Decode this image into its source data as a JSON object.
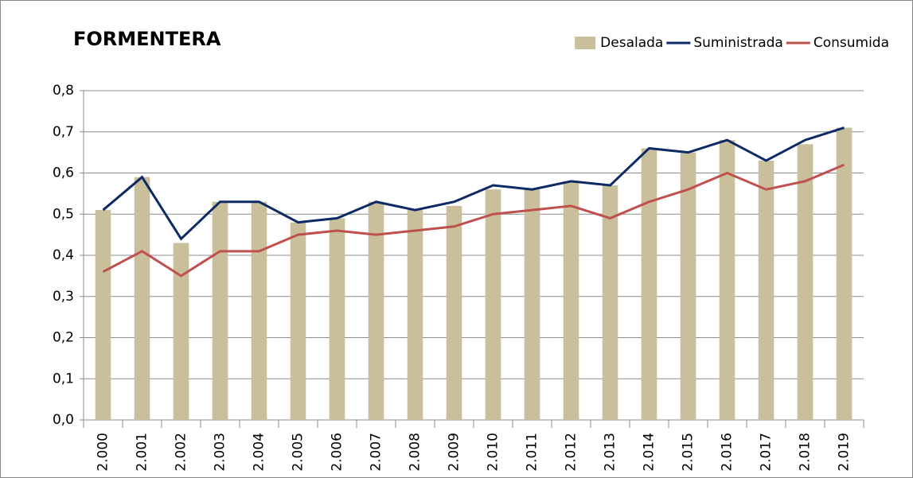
{
  "chart_data": {
    "type": "bar",
    "title": "FORMENTERA",
    "categories": [
      "2.000",
      "2.001",
      "2.002",
      "2.003",
      "2.004",
      "2.005",
      "2.006",
      "2.007",
      "2.008",
      "2.009",
      "2.010",
      "2.011",
      "2.012",
      "2.013",
      "2.014",
      "2.015",
      "2.016",
      "2.017",
      "2.018",
      "2.019"
    ],
    "series": [
      {
        "name": "Desalada",
        "type": "bar",
        "color": "#c9c09b",
        "values": [
          0.51,
          0.59,
          0.43,
          0.53,
          0.53,
          0.48,
          0.49,
          0.53,
          0.51,
          0.52,
          0.56,
          0.56,
          0.58,
          0.57,
          0.66,
          0.65,
          0.68,
          0.63,
          0.67,
          0.71
        ]
      },
      {
        "name": "Suministrada",
        "type": "line",
        "color": "#0d2a66",
        "values": [
          0.51,
          0.59,
          0.44,
          0.53,
          0.53,
          0.48,
          0.49,
          0.53,
          0.51,
          0.53,
          0.57,
          0.56,
          0.58,
          0.57,
          0.66,
          0.65,
          0.68,
          0.63,
          0.68,
          0.71
        ]
      },
      {
        "name": "Consumida",
        "type": "line",
        "color": "#c0504d",
        "values": [
          0.36,
          0.41,
          0.35,
          0.41,
          0.41,
          0.45,
          0.46,
          0.45,
          0.46,
          0.47,
          0.5,
          0.51,
          0.52,
          0.49,
          0.53,
          0.56,
          0.6,
          0.56,
          0.58,
          0.62
        ]
      }
    ],
    "ylim": [
      0,
      0.8
    ],
    "yticks": [
      {
        "value": 0,
        "label": "0,0"
      },
      {
        "value": 0.1,
        "label": "0,1"
      },
      {
        "value": 0.2,
        "label": "0,2"
      },
      {
        "value": 0.3,
        "label": "0,3"
      },
      {
        "value": 0.4,
        "label": "0,4"
      },
      {
        "value": 0.5,
        "label": "0,5"
      },
      {
        "value": 0.6,
        "label": "0,6"
      },
      {
        "value": 0.7,
        "label": "0,7"
      },
      {
        "value": 0.8,
        "label": "0,8"
      }
    ],
    "grid": true,
    "legend": "top-right"
  }
}
